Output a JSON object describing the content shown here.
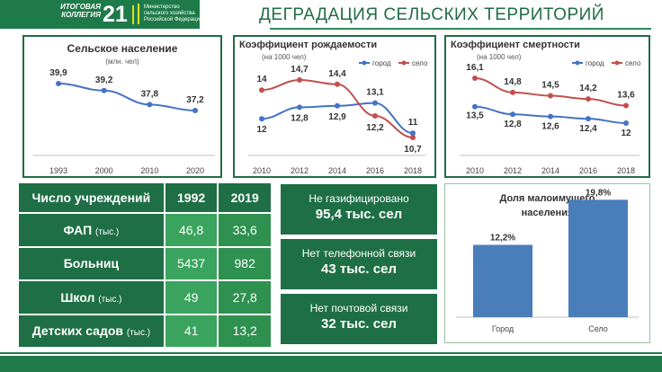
{
  "header": {
    "logo_line1": "ИТОГОВАЯ",
    "logo_line2": "КОЛЛЕГИЯ",
    "logo_number": "21",
    "ministry_line1": "Министерство",
    "ministry_line2": "сельского хозяйства",
    "ministry_line3": "Российской Федерации",
    "title": "ДЕГРАДАЦИЯ СЕЛЬСКИХ ТЕРРИТОРИЙ"
  },
  "colors": {
    "dark_green": "#1e6f45",
    "light_green": "#3aa45e",
    "mid_green": "#2e914f",
    "city_blue": "#4472c4",
    "village_red": "#c0504d",
    "bar_blue": "#4a7ebb"
  },
  "chart_data": [
    {
      "id": "rural-population",
      "type": "line",
      "title": "Сельское население",
      "subtitle": "(млн. чел)",
      "categories": [
        "1993",
        "2000",
        "2010",
        "2020"
      ],
      "series": [
        {
          "values": [
            39.9,
            39.2,
            37.8,
            37.2
          ],
          "labels": [
            "39,9",
            "39,2",
            "37,8",
            "37,2"
          ]
        }
      ]
    },
    {
      "id": "birth-rate",
      "type": "line",
      "title": "Коэффициент рождаемости",
      "subtitle": "(на 1000 чел)",
      "categories": [
        "2010",
        "2012",
        "2014",
        "2016",
        "2018"
      ],
      "legend": "top-right",
      "series": [
        {
          "name": "город",
          "values": [
            12,
            12.8,
            12.9,
            13.1,
            11
          ],
          "labels": [
            "12",
            "12,8",
            "12,9",
            "13,1",
            "11"
          ]
        },
        {
          "name": "село",
          "values": [
            14,
            14.7,
            14.4,
            12.2,
            10.7
          ],
          "labels": [
            "14",
            "14,7",
            "14,4",
            "12,2",
            "10,7"
          ]
        }
      ]
    },
    {
      "id": "death-rate",
      "type": "line",
      "title": "Коэффициент смертности",
      "subtitle": "(на 1000 чел)",
      "categories": [
        "2010",
        "2012",
        "2014",
        "2016",
        "2018"
      ],
      "legend": "top-right",
      "series": [
        {
          "name": "город",
          "values": [
            13.5,
            12.8,
            12.6,
            12.4,
            12
          ],
          "labels": [
            "13,5",
            "12,8",
            "12,6",
            "12,4",
            "12"
          ]
        },
        {
          "name": "село",
          "values": [
            16.1,
            14.8,
            14.5,
            14.2,
            13.6
          ],
          "labels": [
            "16,1",
            "14,8",
            "14,5",
            "14,2",
            "13,6"
          ]
        }
      ]
    },
    {
      "id": "low-income-share",
      "type": "bar",
      "title": "Доля малоимущего населения",
      "categories": [
        "Город",
        "Село"
      ],
      "values": [
        12.2,
        19.8
      ],
      "labels": [
        "12,2%",
        "19,8%"
      ]
    },
    {
      "id": "institutions",
      "type": "table",
      "header": [
        "Число учреждений",
        "1992",
        "2019"
      ],
      "rows": [
        {
          "label": "ФАП",
          "unit": "(тыс.)",
          "v1992": "46,8",
          "v2019": "33,6"
        },
        {
          "label": "Больниц",
          "unit": "",
          "v1992": "5437",
          "v2019": "982"
        },
        {
          "label": "Школ",
          "unit": "(тыс.)",
          "v1992": "49",
          "v2019": "27,8"
        },
        {
          "label": "Детских садов",
          "unit": "(тыс.)",
          "v1992": "41",
          "v2019": "13,2"
        }
      ]
    }
  ],
  "info_boxes": [
    {
      "line1": "Не газифицировано",
      "line2": "95,4 тыс. сел"
    },
    {
      "line1": "Нет телефонной связи",
      "line2": "43 тыс. сел"
    },
    {
      "line1": "Нет почтовой связи",
      "line2": "32 тыс. сел"
    }
  ]
}
